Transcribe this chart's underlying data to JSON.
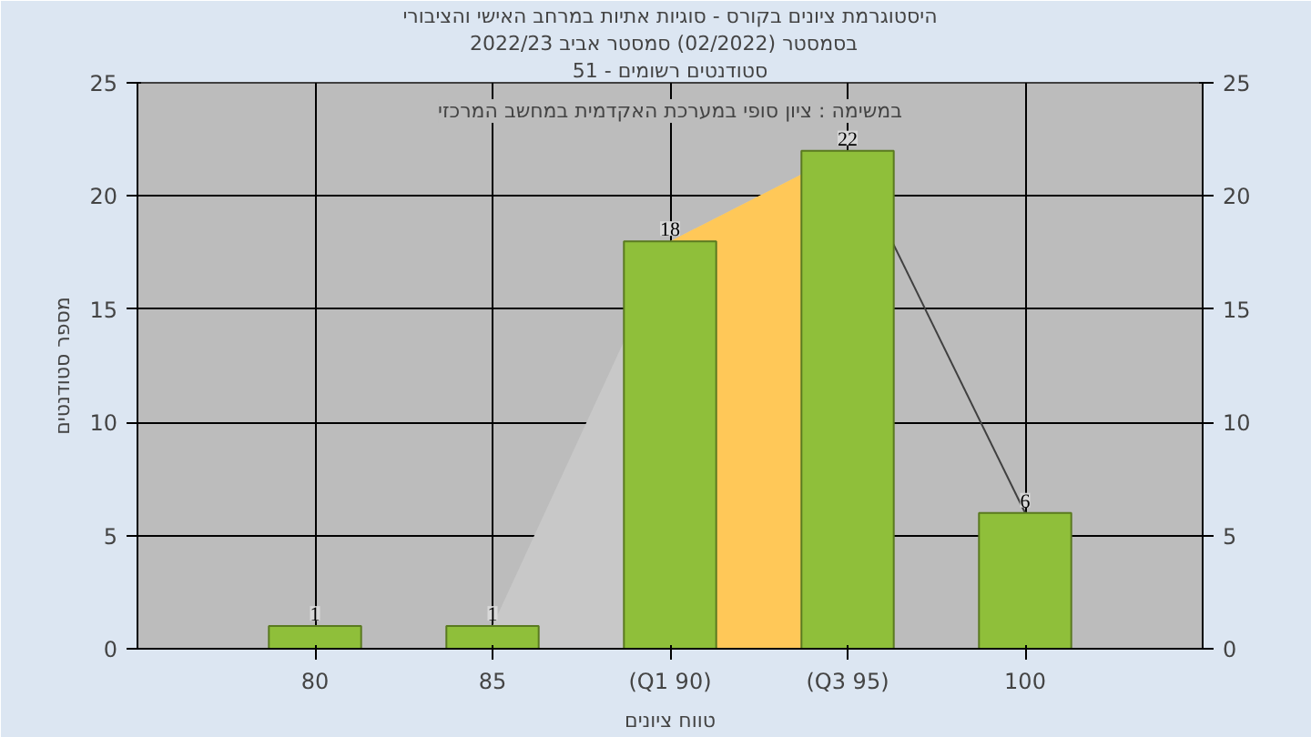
{
  "chart_data": {
    "type": "bar",
    "title": "היסטוגרמת ציונים בקורס - סוגיות אתיות במרחב האישי והציבורי",
    "subtitle": "בסמסטר  (02/2022)  סמסטר אביב 2022/23",
    "xlabel": "טווח ציונים",
    "ylabel": "מספר סטודנטים",
    "annotations": [
      "סטודנטים רשומים - 51",
      "במשימה : ציון סופי במערכת האקדמית במחשב המרכזי"
    ],
    "categories": [
      "80",
      "85",
      "(Q1 90)",
      "(Q3 95)",
      "100"
    ],
    "series": [
      {
        "type": "area",
        "color": "#c8c8c8",
        "values": [
          null,
          1,
          18,
          22,
          null
        ]
      },
      {
        "type": "area",
        "color": "#ffc858",
        "values": [
          null,
          null,
          18,
          22,
          null
        ]
      },
      {
        "type": "line",
        "color": "#404040",
        "values": [
          null,
          null,
          null,
          22,
          6
        ]
      },
      {
        "color": "#8fbf3a",
        "values": [
          1,
          1,
          18,
          22,
          6
        ],
        "value_labels": [
          "1",
          "1",
          "18",
          "22",
          "6"
        ]
      }
    ],
    "ylim": [
      0,
      25
    ],
    "yticks": [
      0,
      5,
      10,
      15,
      20,
      25
    ],
    "y2lim": [
      0,
      25
    ],
    "y2ticks": [
      0,
      5,
      10,
      15,
      20,
      25
    ],
    "grid": true
  }
}
